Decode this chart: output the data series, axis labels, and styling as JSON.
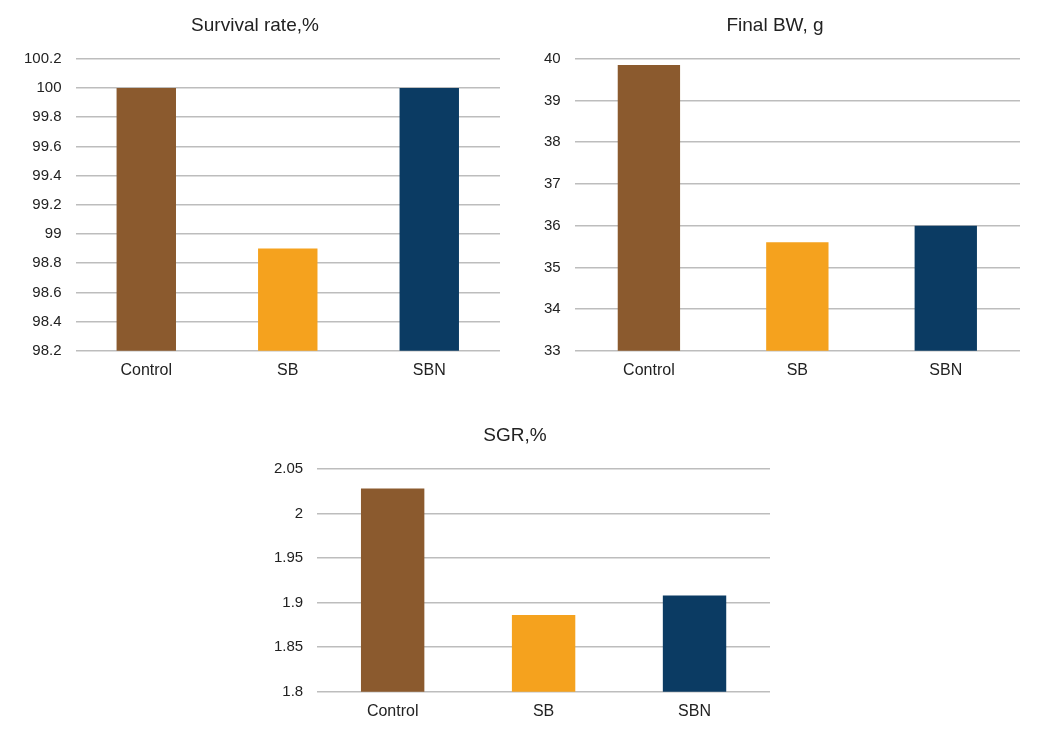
{
  "chart_data": [
    {
      "type": "bar",
      "title": "Survival rate,%",
      "categories": [
        "Control",
        "SB",
        "SBN"
      ],
      "values": [
        100,
        98.9,
        100
      ],
      "colors": [
        "#8b5a2e",
        "#f5a21e",
        "#0b3b63"
      ],
      "ylim": [
        98.2,
        100.2
      ],
      "yticks": [
        {
          "value": 98.2,
          "label": "98.2"
        },
        {
          "value": 98.4,
          "label": "98.4"
        },
        {
          "value": 98.6,
          "label": "98.6"
        },
        {
          "value": 98.8,
          "label": "98.8"
        },
        {
          "value": 99,
          "label": "99"
        },
        {
          "value": 99.2,
          "label": "99.2"
        },
        {
          "value": 99.4,
          "label": "99.4"
        },
        {
          "value": 99.6,
          "label": "99.6"
        },
        {
          "value": 99.8,
          "label": "99.8"
        },
        {
          "value": 100,
          "label": "100"
        },
        {
          "value": 100.2,
          "label": "100.2"
        }
      ],
      "grid": "y"
    },
    {
      "type": "bar",
      "title": "Final BW, g",
      "categories": [
        "Control",
        "SB",
        "SBN"
      ],
      "values": [
        39.85,
        35.6,
        36
      ],
      "colors": [
        "#8b5a2e",
        "#f5a21e",
        "#0b3b63"
      ],
      "ylim": [
        33,
        40
      ],
      "yticks": [
        33,
        34,
        35,
        36,
        37,
        38,
        39,
        40
      ],
      "grid": "y"
    },
    {
      "type": "bar",
      "title": "SGR,%",
      "categories": [
        "Control",
        "SB",
        "SBN"
      ],
      "values": [
        2.028,
        1.886,
        1.908
      ],
      "colors": [
        "#8b5a2e",
        "#f5a21e",
        "#0b3b63"
      ],
      "ylim": [
        1.8,
        2.05
      ],
      "yticks": [
        {
          "value": 1.8,
          "label": "1.8"
        },
        {
          "value": 1.85,
          "label": "1.85"
        },
        {
          "value": 1.9,
          "label": "1.9"
        },
        {
          "value": 1.95,
          "label": "1.95"
        },
        {
          "value": 2,
          "label": "2"
        },
        {
          "value": 2.05,
          "label": "2.05"
        }
      ],
      "grid": "y"
    }
  ]
}
